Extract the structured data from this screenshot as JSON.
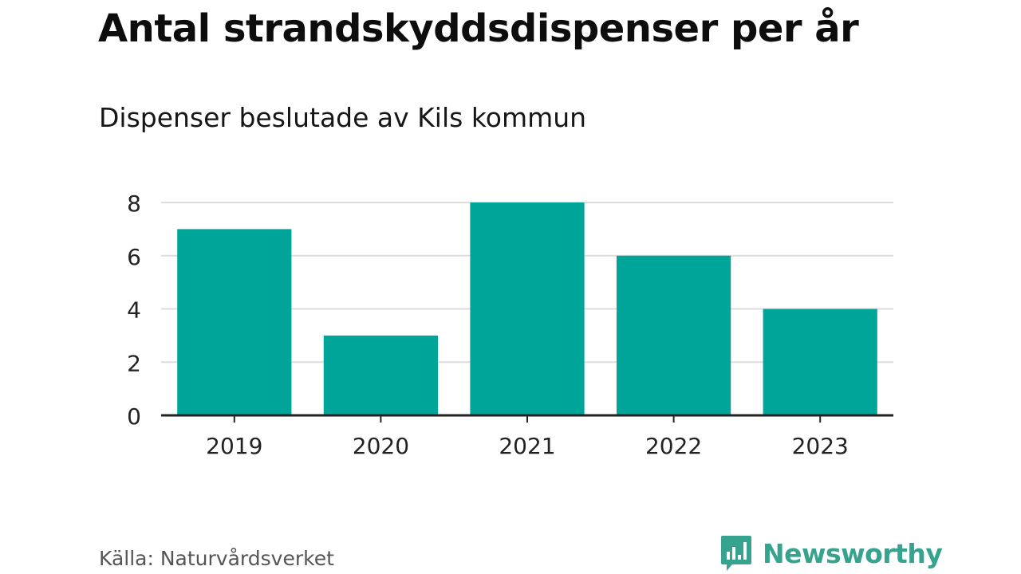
{
  "header": {
    "title": "Antal strandskyddsdispenser per år",
    "subtitle": "Dispenser beslutade av Kils kommun"
  },
  "footer": {
    "source": "Källa: Naturvårdsverket",
    "brand": "Newsworthy",
    "brand_icon": "bar-chart-speech-bubble-icon"
  },
  "colors": {
    "bar": "#00a59a",
    "grid": "#dddddd",
    "axis": "#222222",
    "brand": "#36a38f"
  },
  "chart_data": {
    "type": "bar",
    "categories": [
      "2019",
      "2020",
      "2021",
      "2022",
      "2023"
    ],
    "values": [
      7,
      3,
      8,
      6,
      4
    ],
    "title": "Antal strandskyddsdispenser per år",
    "subtitle": "Dispenser beslutade av Kils kommun",
    "xlabel": "",
    "ylabel": "",
    "ylim": [
      0,
      8
    ],
    "yticks": [
      0,
      2,
      4,
      6,
      8
    ],
    "grid": true,
    "legend": "none"
  }
}
